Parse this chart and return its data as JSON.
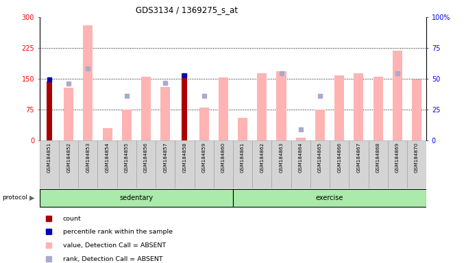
{
  "title": "GDS3134 / 1369275_s_at",
  "samples": [
    "GSM184851",
    "GSM184852",
    "GSM184853",
    "GSM184854",
    "GSM184855",
    "GSM184856",
    "GSM184857",
    "GSM184858",
    "GSM184859",
    "GSM184860",
    "GSM184861",
    "GSM184862",
    "GSM184863",
    "GSM184864",
    "GSM184865",
    "GSM184866",
    "GSM184867",
    "GSM184868",
    "GSM184869",
    "GSM184870"
  ],
  "count_values": [
    143,
    0,
    0,
    0,
    0,
    0,
    0,
    163,
    0,
    0,
    0,
    0,
    0,
    0,
    0,
    0,
    0,
    0,
    0,
    0
  ],
  "rank_values": [
    148,
    0,
    0,
    0,
    0,
    0,
    0,
    158,
    0,
    0,
    0,
    0,
    0,
    0,
    0,
    0,
    0,
    0,
    0,
    0
  ],
  "absent_value": [
    0,
    128,
    280,
    30,
    75,
    155,
    130,
    0,
    80,
    153,
    55,
    163,
    168,
    8,
    75,
    158,
    163,
    155,
    218,
    148
  ],
  "absent_rank": [
    0,
    138,
    175,
    0,
    108,
    0,
    140,
    0,
    108,
    0,
    0,
    0,
    163,
    28,
    108,
    0,
    0,
    0,
    163,
    0
  ],
  "sedentary_count": 10,
  "left_yticks": [
    0,
    75,
    150,
    225,
    300
  ],
  "right_yticks": [
    0,
    25,
    50,
    75,
    100
  ],
  "ylim_left": [
    0,
    300
  ],
  "ylim_right": [
    0,
    100
  ],
  "count_color": "#AA0000",
  "rank_color": "#0000BB",
  "absent_value_color": "#FFB3B3",
  "absent_rank_color": "#AAAACC",
  "green_color": "#AAEAAA",
  "legend_items": [
    {
      "color": "#AA0000",
      "label": "count"
    },
    {
      "color": "#0000BB",
      "label": "percentile rank within the sample"
    },
    {
      "color": "#FFB3B3",
      "label": "value, Detection Call = ABSENT"
    },
    {
      "color": "#AAAACC",
      "label": "rank, Detection Call = ABSENT"
    }
  ]
}
